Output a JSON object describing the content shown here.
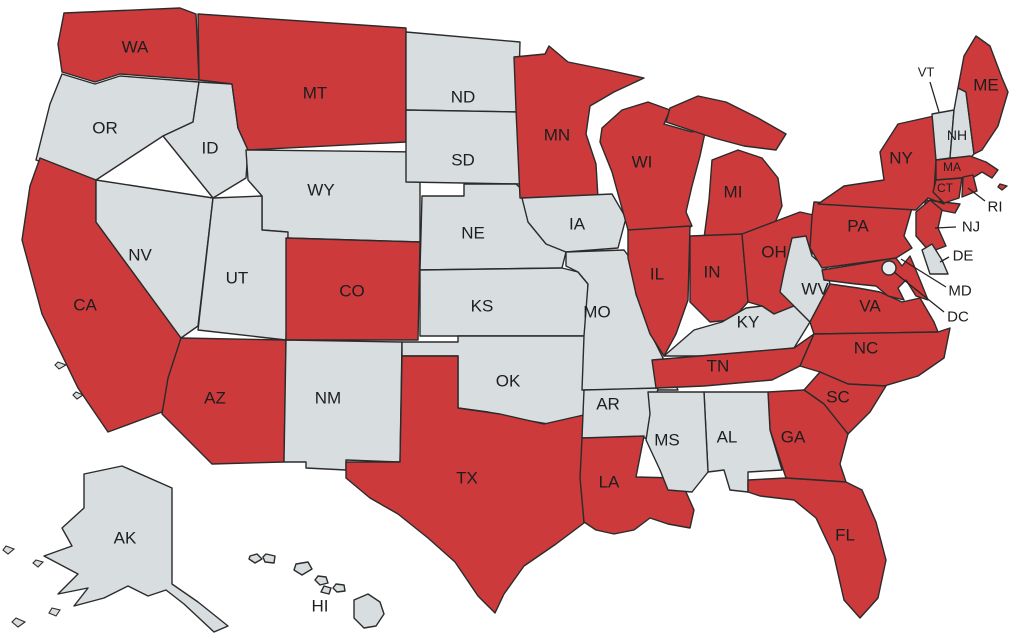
{
  "map": {
    "region": "United States",
    "type": "choropleth-state-map",
    "colors": {
      "highlighted": "#cc3a3c",
      "default": "#d8dde0",
      "border": "#2b2b2b",
      "label": "#1e1e1e",
      "background": "#ffffff",
      "district_circle": "#e9eced",
      "leader_line": "#222222"
    },
    "states": [
      {
        "abbr": "WA",
        "label": "WA",
        "highlighted": true
      },
      {
        "abbr": "OR",
        "label": "OR",
        "highlighted": false
      },
      {
        "abbr": "CA",
        "label": "CA",
        "highlighted": true
      },
      {
        "abbr": "NV",
        "label": "NV",
        "highlighted": false
      },
      {
        "abbr": "ID",
        "label": "ID",
        "highlighted": false
      },
      {
        "abbr": "MT",
        "label": "MT",
        "highlighted": true
      },
      {
        "abbr": "WY",
        "label": "WY",
        "highlighted": false
      },
      {
        "abbr": "UT",
        "label": "UT",
        "highlighted": false
      },
      {
        "abbr": "CO",
        "label": "CO",
        "highlighted": true
      },
      {
        "abbr": "AZ",
        "label": "AZ",
        "highlighted": true
      },
      {
        "abbr": "NM",
        "label": "NM",
        "highlighted": false
      },
      {
        "abbr": "ND",
        "label": "ND",
        "highlighted": false
      },
      {
        "abbr": "SD",
        "label": "SD",
        "highlighted": false
      },
      {
        "abbr": "NE",
        "label": "NE",
        "highlighted": false
      },
      {
        "abbr": "KS",
        "label": "KS",
        "highlighted": false
      },
      {
        "abbr": "OK",
        "label": "OK",
        "highlighted": false
      },
      {
        "abbr": "TX",
        "label": "TX",
        "highlighted": true
      },
      {
        "abbr": "MN",
        "label": "MN",
        "highlighted": true
      },
      {
        "abbr": "IA",
        "label": "IA",
        "highlighted": false
      },
      {
        "abbr": "MO",
        "label": "MO",
        "highlighted": false
      },
      {
        "abbr": "AR",
        "label": "AR",
        "highlighted": false
      },
      {
        "abbr": "LA",
        "label": "LA",
        "highlighted": true
      },
      {
        "abbr": "WI",
        "label": "WI",
        "highlighted": true
      },
      {
        "abbr": "IL",
        "label": "IL",
        "highlighted": true
      },
      {
        "abbr": "MI",
        "label": "MI",
        "highlighted": true
      },
      {
        "abbr": "IN",
        "label": "IN",
        "highlighted": true
      },
      {
        "abbr": "OH",
        "label": "OH",
        "highlighted": true
      },
      {
        "abbr": "KY",
        "label": "KY",
        "highlighted": false
      },
      {
        "abbr": "TN",
        "label": "TN",
        "highlighted": true
      },
      {
        "abbr": "WV",
        "label": "WV",
        "highlighted": false
      },
      {
        "abbr": "VA",
        "label": "VA",
        "highlighted": true
      },
      {
        "abbr": "NC",
        "label": "NC",
        "highlighted": true
      },
      {
        "abbr": "SC",
        "label": "SC",
        "highlighted": true
      },
      {
        "abbr": "GA",
        "label": "GA",
        "highlighted": true
      },
      {
        "abbr": "AL",
        "label": "AL",
        "highlighted": false
      },
      {
        "abbr": "MS",
        "label": "MS",
        "highlighted": false
      },
      {
        "abbr": "FL",
        "label": "FL",
        "highlighted": true
      },
      {
        "abbr": "PA",
        "label": "PA",
        "highlighted": true
      },
      {
        "abbr": "NY",
        "label": "NY",
        "highlighted": true
      },
      {
        "abbr": "NJ",
        "label": "NJ",
        "highlighted": true
      },
      {
        "abbr": "DE",
        "label": "DE",
        "highlighted": false
      },
      {
        "abbr": "MD",
        "label": "MD",
        "highlighted": true
      },
      {
        "abbr": "DC",
        "label": "DC",
        "highlighted": false
      },
      {
        "abbr": "VT",
        "label": "VT",
        "highlighted": false
      },
      {
        "abbr": "NH",
        "label": "NH",
        "highlighted": false
      },
      {
        "abbr": "ME",
        "label": "ME",
        "highlighted": true
      },
      {
        "abbr": "MA",
        "label": "MA",
        "highlighted": true
      },
      {
        "abbr": "CT",
        "label": "CT",
        "highlighted": true
      },
      {
        "abbr": "RI",
        "label": "RI",
        "highlighted": true
      },
      {
        "abbr": "AK",
        "label": "AK",
        "highlighted": false
      },
      {
        "abbr": "HI",
        "label": "HI",
        "highlighted": false
      }
    ]
  }
}
